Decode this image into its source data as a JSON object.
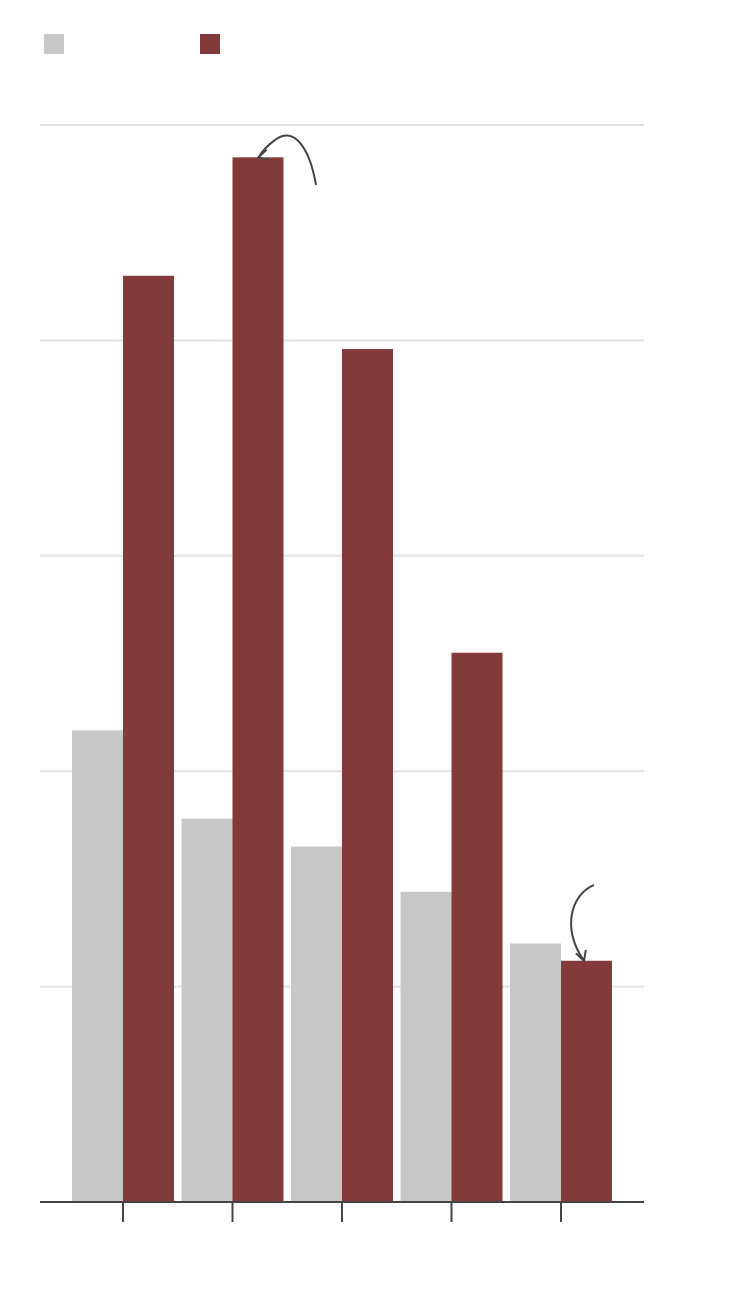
{
  "colors": {
    "series_a": "#c8c8c8",
    "series_b": "#833a3a",
    "grid": "#e2e2e2",
    "axis": "#444444",
    "annotation": "#444444",
    "background": "#ffffff"
  },
  "chart_data": {
    "type": "bar",
    "title": "",
    "xlabel": "",
    "ylabel": "",
    "categories": [
      "",
      "",
      "",
      "",
      ""
    ],
    "series": [
      {
        "name": "",
        "color": "#c8c8c8",
        "values": [
          2.19,
          1.78,
          1.65,
          1.44,
          1.2
        ]
      },
      {
        "name": "",
        "color": "#833a3a",
        "values": [
          4.3,
          4.85,
          3.96,
          2.55,
          1.12
        ]
      }
    ],
    "ylim": [
      0,
      5
    ],
    "yticks": [
      0,
      1,
      2,
      3,
      4,
      5
    ],
    "grid": true,
    "legend": "top-left",
    "annotations": [
      {
        "type": "curved-arrow",
        "target_series": 1,
        "target_category": 1
      },
      {
        "type": "curved-arrow",
        "target_series": 1,
        "target_category": 4
      }
    ]
  }
}
